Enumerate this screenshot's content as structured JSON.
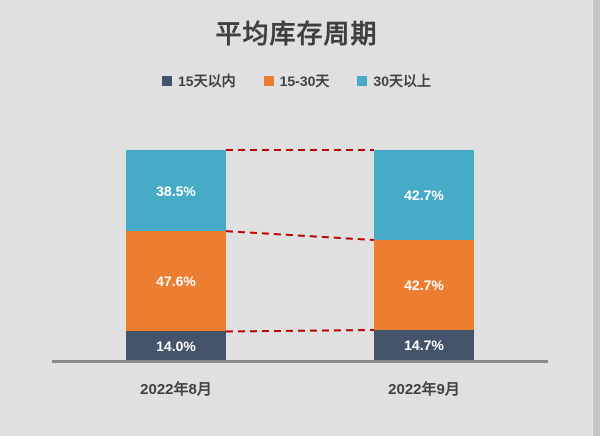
{
  "title": "平均库存周期",
  "chart_data": {
    "type": "bar",
    "stacked": true,
    "percent_stacked": true,
    "title": "平均库存周期",
    "categories": [
      "2022年8月",
      "2022年9月"
    ],
    "series": [
      {
        "name": "15天以内",
        "color": "#44546a",
        "values": [
          14.0,
          14.7
        ],
        "labels": [
          "14.0%",
          "14.7%"
        ]
      },
      {
        "name": "15-30天",
        "color": "#ed7d31",
        "values": [
          47.6,
          42.7
        ],
        "labels": [
          "47.6%",
          "42.7%"
        ]
      },
      {
        "name": "30天以上",
        "color": "#45abc7",
        "values": [
          38.5,
          42.7
        ],
        "labels": [
          "38.5%",
          "42.7%"
        ]
      }
    ],
    "ylim": [
      0,
      100
    ],
    "unit": "%",
    "legend_position": "top",
    "grid": false,
    "connectors": {
      "style": "dashed",
      "color": "#c00000"
    }
  }
}
